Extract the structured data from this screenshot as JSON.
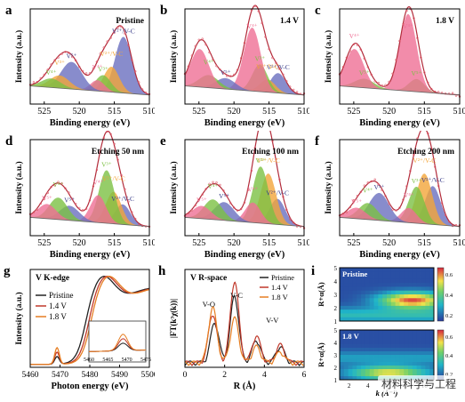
{
  "xps_common": {
    "xlabel": "Binding energy (eV)",
    "ylabel": "Intensity (a.u.)",
    "x_ticks": [
      "525",
      "520",
      "515",
      "510"
    ],
    "colors": {
      "envelope": "#e05a6a",
      "fit": "#b22b3a",
      "v2plus": "#6a6fbf",
      "v3plus": "#f2a53a",
      "v4plus": "#7cc043",
      "v5plus": "#ef6f95",
      "vc": "#5a5fa8"
    }
  },
  "xps_panels": [
    {
      "letter": "a",
      "title": "Pristine",
      "labels": [
        "V²⁺/V-C",
        "V²⁺/V-C",
        "V³⁺",
        "V⁴⁺",
        "V⁵⁺",
        "V³⁺",
        "V⁴⁺"
      ],
      "chart_data": {
        "type": "area",
        "xlim": [
          527,
          510
        ],
        "components": [
          {
            "name": "V2+/V-C",
            "center": 513.7,
            "height": 0.62,
            "width": 1.2
          },
          {
            "name": "V3+",
            "center": 515.4,
            "height": 0.28,
            "width": 1.1
          },
          {
            "name": "V4+",
            "center": 516.6,
            "height": 0.18,
            "width": 1.1
          },
          {
            "name": "V5+",
            "center": 517.4,
            "height": 0.12,
            "width": 1.0
          },
          {
            "name": "V2+/V-C",
            "center": 521.1,
            "height": 0.3,
            "width": 1.5
          },
          {
            "name": "V3+",
            "center": 522.8,
            "height": 0.14,
            "width": 1.4
          },
          {
            "name": "V4+",
            "center": 524.0,
            "height": 0.1,
            "width": 1.4
          }
        ]
      }
    },
    {
      "letter": "b",
      "title": "1.4 V",
      "labels": [
        "V²⁺/V-C",
        "V²⁺/V-C",
        "V³⁺",
        "V⁴⁺",
        "V⁵⁺",
        "V⁴⁺"
      ],
      "chart_data": {
        "type": "area",
        "xlim": [
          527,
          510
        ],
        "components": [
          {
            "name": "V2+/V-C",
            "center": 513.7,
            "height": 0.22,
            "width": 1.1
          },
          {
            "name": "V3+",
            "center": 515.2,
            "height": 0.14,
            "width": 1.1
          },
          {
            "name": "V4+",
            "center": 516.3,
            "height": 0.3,
            "width": 1.1
          },
          {
            "name": "V5+",
            "center": 517.4,
            "height": 0.7,
            "width": 1.2
          },
          {
            "name": "V2+/V-C",
            "center": 521.2,
            "height": 0.12,
            "width": 1.4
          },
          {
            "name": "V4+",
            "center": 523.6,
            "height": 0.14,
            "width": 1.4
          },
          {
            "name": "V5+",
            "center": 524.9,
            "height": 0.42,
            "width": 1.3
          }
        ]
      }
    },
    {
      "letter": "c",
      "title": "1.8 V",
      "labels": [
        "V⁵⁺",
        "V⁴⁺",
        "V⁵⁺",
        "V⁴⁺"
      ],
      "chart_data": {
        "type": "area",
        "xlim": [
          527,
          510
        ],
        "components": [
          {
            "name": "V4+",
            "center": 516.1,
            "height": 0.14,
            "width": 1.1
          },
          {
            "name": "V5+",
            "center": 517.3,
            "height": 0.85,
            "width": 1.2
          },
          {
            "name": "V4+",
            "center": 523.5,
            "height": 0.1,
            "width": 1.4
          },
          {
            "name": "V5+",
            "center": 524.9,
            "height": 0.42,
            "width": 1.3
          }
        ]
      }
    },
    {
      "letter": "d",
      "title": "Etching 50 nm",
      "labels": [
        "V²⁺/V-C",
        "V²⁺/V-C",
        "V³⁺",
        "V⁴⁺",
        "V⁵⁺",
        "V⁴⁺",
        "V⁵⁺"
      ],
      "chart_data": {
        "type": "area",
        "xlim": [
          527,
          510
        ],
        "components": [
          {
            "name": "V2+/V-C",
            "center": 513.8,
            "height": 0.22,
            "width": 1.1
          },
          {
            "name": "V3+",
            "center": 515.1,
            "height": 0.35,
            "width": 1.1
          },
          {
            "name": "V4+",
            "center": 516.1,
            "height": 0.58,
            "width": 1.1
          },
          {
            "name": "V5+",
            "center": 517.3,
            "height": 0.3,
            "width": 1.1
          },
          {
            "name": "V2+/V-C",
            "center": 521.4,
            "height": 0.16,
            "width": 1.4
          },
          {
            "name": "V4+",
            "center": 523.0,
            "height": 0.24,
            "width": 1.3
          },
          {
            "name": "V5+",
            "center": 524.6,
            "height": 0.16,
            "width": 1.3
          }
        ]
      }
    },
    {
      "letter": "e",
      "title": "Etching 100 nm",
      "labels": [
        "V²⁺/V-C",
        "V²⁺/V-C",
        "V³⁺",
        "V⁴⁺",
        "V⁵⁺",
        "V⁴⁺",
        "V⁵⁺"
      ],
      "chart_data": {
        "type": "area",
        "xlim": [
          527,
          510
        ],
        "components": [
          {
            "name": "V2+/V-C",
            "center": 513.8,
            "height": 0.28,
            "width": 1.1
          },
          {
            "name": "V3+",
            "center": 515.1,
            "height": 0.55,
            "width": 1.1
          },
          {
            "name": "V4+",
            "center": 516.2,
            "height": 0.62,
            "width": 1.1
          },
          {
            "name": "V5+",
            "center": 517.3,
            "height": 0.22,
            "width": 1.1
          },
          {
            "name": "V2+/V-C",
            "center": 521.4,
            "height": 0.2,
            "width": 1.4
          },
          {
            "name": "V4+",
            "center": 523.0,
            "height": 0.22,
            "width": 1.3
          },
          {
            "name": "V5+",
            "center": 524.6,
            "height": 0.14,
            "width": 1.3
          }
        ]
      }
    },
    {
      "letter": "f",
      "title": "Etching 200 nm",
      "labels": [
        "V²⁺/V-C",
        "V²⁺/V-C",
        "V³⁺",
        "V⁴⁺",
        "V⁵⁺",
        "V⁴⁺",
        "V⁵⁺"
      ],
      "chart_data": {
        "type": "area",
        "xlim": [
          527,
          510
        ],
        "components": [
          {
            "name": "V2+/V-C",
            "center": 513.8,
            "height": 0.42,
            "width": 1.1
          },
          {
            "name": "V3+",
            "center": 515.0,
            "height": 0.55,
            "width": 1.1
          },
          {
            "name": "V4+",
            "center": 516.1,
            "height": 0.4,
            "width": 1.1
          },
          {
            "name": "V5+",
            "center": 517.2,
            "height": 0.16,
            "width": 1.1
          },
          {
            "name": "V2+/V-C",
            "center": 521.4,
            "height": 0.3,
            "width": 1.4
          },
          {
            "name": "V4+",
            "center": 523.0,
            "height": 0.18,
            "width": 1.3
          },
          {
            "name": "V5+",
            "center": 524.6,
            "height": 0.12,
            "width": 1.3
          }
        ]
      }
    }
  ],
  "panel_g": {
    "letter": "g",
    "title": "V K-edge",
    "xlabel": "Photon energy (eV)",
    "ylabel": "Intensity (a.u.)",
    "x_ticks": [
      "5460",
      "5470",
      "5480",
      "5490",
      "5500"
    ],
    "inset_ticks": [
      "5460",
      "5465",
      "5470",
      "5475"
    ],
    "legend": [
      "Pristine",
      "1.4 V",
      "1.8 V"
    ],
    "chart_data": {
      "type": "line",
      "xlim": [
        5460,
        5500
      ],
      "series": [
        {
          "name": "Pristine",
          "color": "#222222",
          "edge": 5478.5,
          "pre": 0.1
        },
        {
          "name": "1.4 V",
          "color": "#c0392b",
          "edge": 5479.5,
          "pre": 0.16
        },
        {
          "name": "1.8 V",
          "color": "#e67e22",
          "edge": 5480.2,
          "pre": 0.22
        }
      ]
    }
  },
  "panel_h": {
    "letter": "h",
    "title": "V R-space",
    "xlabel": "R (Å)",
    "ylabel": "|FT(k³χ(k))|",
    "x_ticks": [
      "0",
      "2",
      "4",
      "6"
    ],
    "labels": [
      "V-O",
      "V-C",
      "V-V"
    ],
    "legend": [
      "Pristine",
      "1.4 V",
      "1.8 V"
    ],
    "chart_data": {
      "type": "line",
      "xlim": [
        0,
        6
      ],
      "series": [
        {
          "name": "Pristine",
          "color": "#222222",
          "peaks": [
            [
              1.5,
              0.45
            ],
            [
              2.5,
              0.75
            ],
            [
              3.6,
              0.25
            ],
            [
              4.8,
              0.18
            ]
          ]
        },
        {
          "name": "1.4 V",
          "color": "#c0392b",
          "peaks": [
            [
              1.4,
              0.55
            ],
            [
              2.5,
              0.92
            ],
            [
              3.6,
              0.3
            ],
            [
              4.8,
              0.2
            ]
          ]
        },
        {
          "name": "1.8 V",
          "color": "#e67e22",
          "peaks": [
            [
              1.4,
              0.62
            ],
            [
              2.5,
              0.5
            ],
            [
              3.6,
              0.18
            ],
            [
              4.8,
              0.12
            ]
          ]
        }
      ]
    }
  },
  "panel_i": {
    "letter": "i",
    "top_title": "Pristine",
    "bottom_title": "1.8 V",
    "ylabel": "R+α(Å)",
    "xlabel": "k (Å⁻¹)",
    "y_ticks": [
      "5",
      "4",
      "3",
      "2",
      "1"
    ],
    "x_ticks": [
      "2",
      "4",
      "6",
      "8",
      "10"
    ],
    "colorbar_ticks": [
      "0.6",
      "0.4",
      "0.2"
    ],
    "chart_data": {
      "type": "heatmap",
      "xlim": [
        1,
        11
      ],
      "ylim": [
        1,
        5
      ]
    }
  },
  "watermark": "材料科学与工程"
}
